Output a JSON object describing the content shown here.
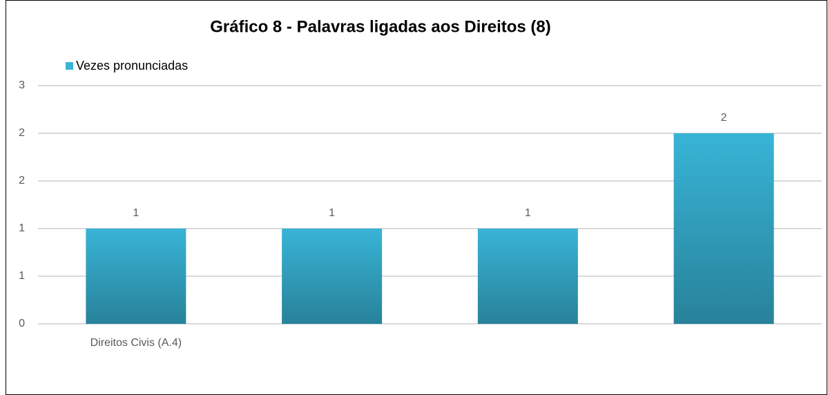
{
  "chart_data": {
    "type": "bar",
    "title": "Gráfico 8 - Palavras ligadas aos Direitos (8)",
    "categories": [
      "Direitos Civis (A.4)",
      null,
      null,
      null
    ],
    "series": [
      {
        "name": "Vezes pronunciadas",
        "color": "#38b4d6",
        "values": [
          1,
          1,
          1,
          2
        ]
      }
    ],
    "ylim": [
      0,
      2.5
    ],
    "yticks": [
      0,
      {
        "value": 0.5,
        "label": "1"
      },
      1,
      {
        "value": 1.5,
        "label": "2"
      },
      2,
      {
        "value": 2.5,
        "label": "3"
      }
    ],
    "grid": true,
    "legend": "top-left"
  }
}
